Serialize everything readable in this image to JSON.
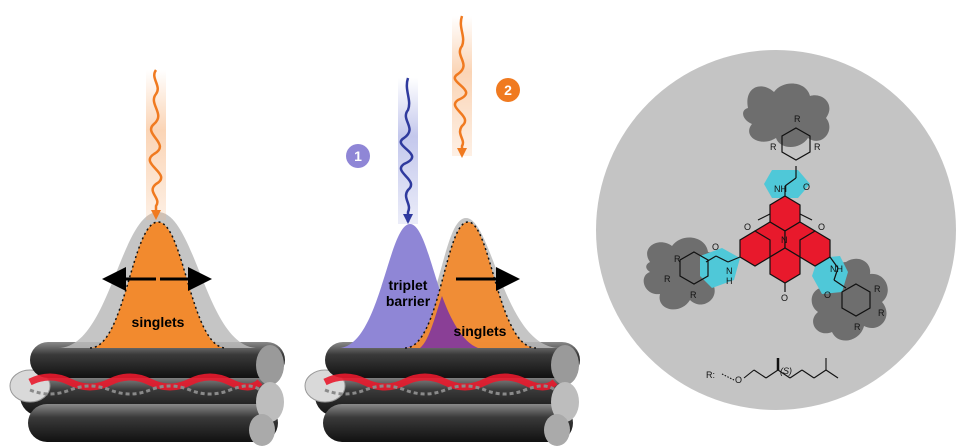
{
  "panel_left": {
    "label_singlets": "singlets"
  },
  "panel_middle": {
    "label_triplet": "triplet",
    "label_barrier": "barrier",
    "label_singlets": "singlets",
    "pulse1_number": "1",
    "pulse2_number": "2"
  },
  "molecule": {
    "atoms": {
      "R": "R",
      "NH": "NH",
      "H": "H",
      "N": "N",
      "O": "O"
    },
    "legend_R": "R:",
    "stereo": "(S)"
  },
  "colors": {
    "singlet_orange": "#f28a2e",
    "triplet_blue": "#8f86d6",
    "pulse1_blue": "#2f3a9e",
    "pulse2_orange": "#f07a20",
    "core_red": "#e8192c",
    "amide_cyan": "#4fc8d8",
    "circle_gray": "#c4c4c4",
    "blob_gray": "#6e6e6e"
  }
}
